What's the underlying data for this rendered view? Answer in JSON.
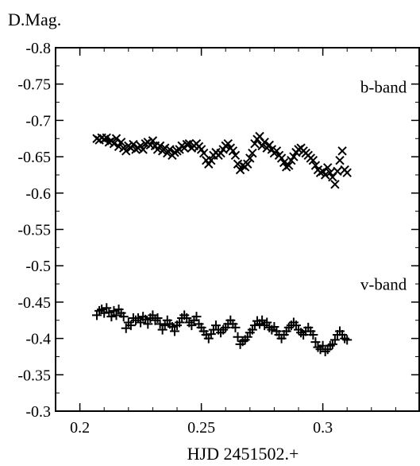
{
  "chart_data": {
    "type": "scatter",
    "ylabel": "D.Mag.",
    "xlabel": "HJD 2451502.+",
    "xlim": [
      0.19,
      0.34
    ],
    "ylim": [
      -0.8,
      -0.3
    ],
    "y_inverted": true,
    "grid": false,
    "x_ticks": [
      {
        "value": 0.2,
        "label": "0.2"
      },
      {
        "value": 0.25,
        "label": "0.25"
      },
      {
        "value": 0.3,
        "label": "0.3"
      }
    ],
    "y_ticks": [
      {
        "value": -0.8,
        "label": "-0.8"
      },
      {
        "value": -0.75,
        "label": "-0.75"
      },
      {
        "value": -0.7,
        "label": "-0.7"
      },
      {
        "value": -0.65,
        "label": "-0.65"
      },
      {
        "value": -0.6,
        "label": "-0.6"
      },
      {
        "value": -0.55,
        "label": "-0.55"
      },
      {
        "value": -0.5,
        "label": "-0.5"
      },
      {
        "value": -0.45,
        "label": "-0.45"
      },
      {
        "value": -0.4,
        "label": "-0.4"
      },
      {
        "value": -0.35,
        "label": "-0.35"
      },
      {
        "value": -0.3,
        "label": "-0.3"
      }
    ],
    "annotations": [
      {
        "text": "b-band",
        "x": 0.325,
        "y": -0.738
      },
      {
        "text": "v-band",
        "x": 0.325,
        "y": -0.467
      }
    ],
    "series": [
      {
        "marker": "x",
        "points": [
          [
            0.207,
            -0.675
          ],
          [
            0.208,
            -0.673
          ],
          [
            0.209,
            -0.676
          ],
          [
            0.21,
            -0.674
          ],
          [
            0.211,
            -0.676
          ],
          [
            0.212,
            -0.67
          ],
          [
            0.213,
            -0.672
          ],
          [
            0.214,
            -0.668
          ],
          [
            0.215,
            -0.675
          ],
          [
            0.216,
            -0.664
          ],
          [
            0.217,
            -0.67
          ],
          [
            0.218,
            -0.662
          ],
          [
            0.219,
            -0.658
          ],
          [
            0.22,
            -0.665
          ],
          [
            0.221,
            -0.662
          ],
          [
            0.222,
            -0.667
          ],
          [
            0.223,
            -0.66
          ],
          [
            0.224,
            -0.662
          ],
          [
            0.225,
            -0.665
          ],
          [
            0.226,
            -0.66
          ],
          [
            0.227,
            -0.668
          ],
          [
            0.228,
            -0.67
          ],
          [
            0.229,
            -0.666
          ],
          [
            0.23,
            -0.672
          ],
          [
            0.231,
            -0.665
          ],
          [
            0.232,
            -0.66
          ],
          [
            0.233,
            -0.665
          ],
          [
            0.234,
            -0.658
          ],
          [
            0.235,
            -0.662
          ],
          [
            0.236,
            -0.655
          ],
          [
            0.237,
            -0.66
          ],
          [
            0.238,
            -0.652
          ],
          [
            0.239,
            -0.656
          ],
          [
            0.24,
            -0.658
          ],
          [
            0.241,
            -0.66
          ],
          [
            0.242,
            -0.665
          ],
          [
            0.243,
            -0.662
          ],
          [
            0.244,
            -0.667
          ],
          [
            0.245,
            -0.668
          ],
          [
            0.246,
            -0.662
          ],
          [
            0.247,
            -0.665
          ],
          [
            0.248,
            -0.668
          ],
          [
            0.249,
            -0.664
          ],
          [
            0.25,
            -0.66
          ],
          [
            0.251,
            -0.655
          ],
          [
            0.252,
            -0.645
          ],
          [
            0.253,
            -0.64
          ],
          [
            0.254,
            -0.645
          ],
          [
            0.255,
            -0.652
          ],
          [
            0.256,
            -0.656
          ],
          [
            0.257,
            -0.652
          ],
          [
            0.258,
            -0.655
          ],
          [
            0.259,
            -0.66
          ],
          [
            0.26,
            -0.665
          ],
          [
            0.261,
            -0.668
          ],
          [
            0.262,
            -0.662
          ],
          [
            0.263,
            -0.658
          ],
          [
            0.264,
            -0.652
          ],
          [
            0.265,
            -0.64
          ],
          [
            0.266,
            -0.632
          ],
          [
            0.267,
            -0.638
          ],
          [
            0.268,
            -0.636
          ],
          [
            0.269,
            -0.64
          ],
          [
            0.27,
            -0.648
          ],
          [
            0.271,
            -0.655
          ],
          [
            0.272,
            -0.668
          ],
          [
            0.273,
            -0.674
          ],
          [
            0.274,
            -0.678
          ],
          [
            0.275,
            -0.665
          ],
          [
            0.276,
            -0.67
          ],
          [
            0.277,
            -0.662
          ],
          [
            0.278,
            -0.666
          ],
          [
            0.279,
            -0.66
          ],
          [
            0.28,
            -0.655
          ],
          [
            0.281,
            -0.658
          ],
          [
            0.282,
            -0.652
          ],
          [
            0.283,
            -0.648
          ],
          [
            0.284,
            -0.642
          ],
          [
            0.285,
            -0.636
          ],
          [
            0.286,
            -0.638
          ],
          [
            0.287,
            -0.645
          ],
          [
            0.288,
            -0.65
          ],
          [
            0.289,
            -0.656
          ],
          [
            0.29,
            -0.66
          ],
          [
            0.291,
            -0.662
          ],
          [
            0.292,
            -0.658
          ],
          [
            0.293,
            -0.655
          ],
          [
            0.294,
            -0.652
          ],
          [
            0.295,
            -0.648
          ],
          [
            0.296,
            -0.645
          ],
          [
            0.297,
            -0.638
          ],
          [
            0.298,
            -0.632
          ],
          [
            0.299,
            -0.628
          ],
          [
            0.3,
            -0.63
          ],
          [
            0.301,
            -0.625
          ],
          [
            0.302,
            -0.635
          ],
          [
            0.303,
            -0.628
          ],
          [
            0.304,
            -0.622
          ],
          [
            0.305,
            -0.612
          ],
          [
            0.306,
            -0.63
          ],
          [
            0.307,
            -0.645
          ],
          [
            0.308,
            -0.658
          ],
          [
            0.309,
            -0.632
          ],
          [
            0.31,
            -0.628
          ]
        ]
      },
      {
        "marker": "+",
        "points": [
          [
            0.207,
            -0.432
          ],
          [
            0.208,
            -0.438
          ],
          [
            0.209,
            -0.44
          ],
          [
            0.21,
            -0.435
          ],
          [
            0.211,
            -0.442
          ],
          [
            0.212,
            -0.436
          ],
          [
            0.213,
            -0.43
          ],
          [
            0.214,
            -0.438
          ],
          [
            0.215,
            -0.432
          ],
          [
            0.216,
            -0.44
          ],
          [
            0.217,
            -0.435
          ],
          [
            0.218,
            -0.43
          ],
          [
            0.219,
            -0.414
          ],
          [
            0.22,
            -0.422
          ],
          [
            0.221,
            -0.418
          ],
          [
            0.222,
            -0.428
          ],
          [
            0.223,
            -0.425
          ],
          [
            0.224,
            -0.428
          ],
          [
            0.225,
            -0.422
          ],
          [
            0.226,
            -0.43
          ],
          [
            0.227,
            -0.426
          ],
          [
            0.228,
            -0.42
          ],
          [
            0.229,
            -0.428
          ],
          [
            0.23,
            -0.432
          ],
          [
            0.231,
            -0.425
          ],
          [
            0.232,
            -0.428
          ],
          [
            0.233,
            -0.42
          ],
          [
            0.234,
            -0.412
          ],
          [
            0.235,
            -0.418
          ],
          [
            0.236,
            -0.425
          ],
          [
            0.237,
            -0.42
          ],
          [
            0.238,
            -0.416
          ],
          [
            0.239,
            -0.41
          ],
          [
            0.24,
            -0.418
          ],
          [
            0.241,
            -0.422
          ],
          [
            0.242,
            -0.428
          ],
          [
            0.243,
            -0.432
          ],
          [
            0.244,
            -0.428
          ],
          [
            0.245,
            -0.422
          ],
          [
            0.246,
            -0.418
          ],
          [
            0.247,
            -0.425
          ],
          [
            0.248,
            -0.43
          ],
          [
            0.249,
            -0.42
          ],
          [
            0.25,
            -0.415
          ],
          [
            0.251,
            -0.41
          ],
          [
            0.252,
            -0.405
          ],
          [
            0.253,
            -0.4
          ],
          [
            0.254,
            -0.406
          ],
          [
            0.255,
            -0.412
          ],
          [
            0.256,
            -0.418
          ],
          [
            0.257,
            -0.412
          ],
          [
            0.258,
            -0.408
          ],
          [
            0.259,
            -0.412
          ],
          [
            0.26,
            -0.415
          ],
          [
            0.261,
            -0.42
          ],
          [
            0.262,
            -0.425
          ],
          [
            0.263,
            -0.42
          ],
          [
            0.264,
            -0.415
          ],
          [
            0.265,
            -0.402
          ],
          [
            0.266,
            -0.392
          ],
          [
            0.267,
            -0.396
          ],
          [
            0.268,
            -0.398
          ],
          [
            0.269,
            -0.402
          ],
          [
            0.27,
            -0.408
          ],
          [
            0.271,
            -0.412
          ],
          [
            0.272,
            -0.418
          ],
          [
            0.273,
            -0.424
          ],
          [
            0.274,
            -0.42
          ],
          [
            0.275,
            -0.425
          ],
          [
            0.276,
            -0.418
          ],
          [
            0.277,
            -0.422
          ],
          [
            0.278,
            -0.415
          ],
          [
            0.279,
            -0.412
          ],
          [
            0.28,
            -0.416
          ],
          [
            0.281,
            -0.41
          ],
          [
            0.282,
            -0.405
          ],
          [
            0.283,
            -0.4
          ],
          [
            0.284,
            -0.405
          ],
          [
            0.285,
            -0.41
          ],
          [
            0.286,
            -0.415
          ],
          [
            0.287,
            -0.418
          ],
          [
            0.288,
            -0.422
          ],
          [
            0.289,
            -0.418
          ],
          [
            0.29,
            -0.412
          ],
          [
            0.291,
            -0.408
          ],
          [
            0.292,
            -0.405
          ],
          [
            0.293,
            -0.41
          ],
          [
            0.294,
            -0.415
          ],
          [
            0.295,
            -0.41
          ],
          [
            0.296,
            -0.405
          ],
          [
            0.297,
            -0.395
          ],
          [
            0.298,
            -0.388
          ],
          [
            0.299,
            -0.385
          ],
          [
            0.3,
            -0.39
          ],
          [
            0.301,
            -0.382
          ],
          [
            0.302,
            -0.385
          ],
          [
            0.303,
            -0.39
          ],
          [
            0.304,
            -0.392
          ],
          [
            0.305,
            -0.398
          ],
          [
            0.306,
            -0.405
          ],
          [
            0.307,
            -0.41
          ],
          [
            0.308,
            -0.405
          ],
          [
            0.309,
            -0.4
          ],
          [
            0.31,
            -0.398
          ]
        ]
      }
    ]
  }
}
